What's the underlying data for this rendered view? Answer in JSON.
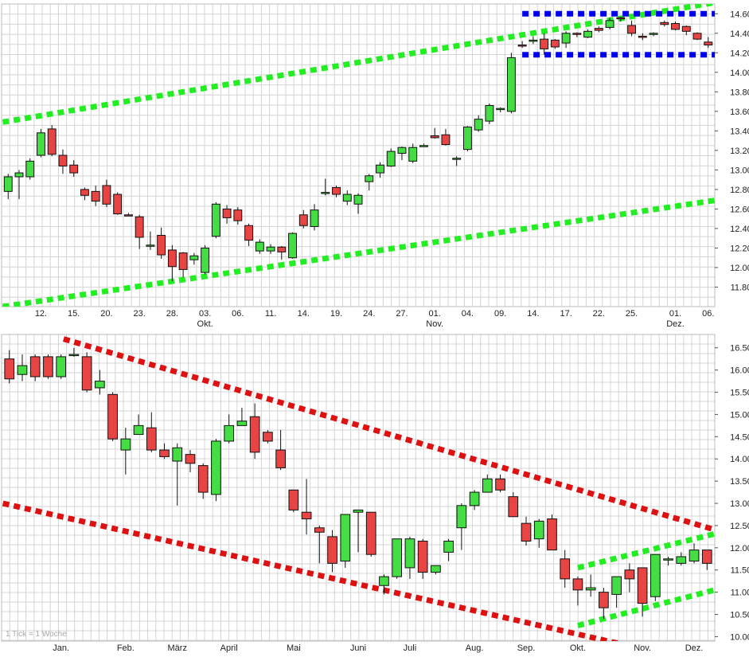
{
  "colors": {
    "up": "#44dd44",
    "down": "#e84444",
    "grid": "#d4d4d4",
    "green_channel": "#22ee22",
    "red_channel": "#dd1111",
    "blue_range": "#0000ee"
  },
  "chart_data": [
    {
      "type": "candlestick",
      "timeframe": "daily",
      "ylim": [
        11600,
        14700
      ],
      "y_ticks": [
        "11.800",
        "12.000",
        "12.200",
        "12.400",
        "12.600",
        "12.800",
        "13.000",
        "13.200",
        "13.400",
        "13.600",
        "13.800",
        "14.000",
        "14.200",
        "14.400",
        "14.600"
      ],
      "x_ticks": [
        {
          "i": 3,
          "label": "12."
        },
        {
          "i": 6,
          "label": "15."
        },
        {
          "i": 9,
          "label": "20."
        },
        {
          "i": 12,
          "label": "23."
        },
        {
          "i": 15,
          "label": "28."
        },
        {
          "i": 18,
          "label": "03.",
          "sub": "Okt."
        },
        {
          "i": 21,
          "label": "06."
        },
        {
          "i": 24,
          "label": "11."
        },
        {
          "i": 27,
          "label": "14."
        },
        {
          "i": 30,
          "label": "19."
        },
        {
          "i": 33,
          "label": "24."
        },
        {
          "i": 36,
          "label": "27."
        },
        {
          "i": 39,
          "label": "01.",
          "sub": "Nov."
        },
        {
          "i": 42,
          "label": "04."
        },
        {
          "i": 45,
          "label": "09."
        },
        {
          "i": 48,
          "label": "14."
        },
        {
          "i": 51,
          "label": "17."
        },
        {
          "i": 54,
          "label": "22."
        },
        {
          "i": 57,
          "label": "25."
        },
        {
          "i": 61,
          "label": "01.",
          "sub": "Dez."
        },
        {
          "i": 64,
          "label": "06."
        }
      ],
      "candles": [
        [
          12780,
          12930,
          12700,
          12960
        ],
        [
          12930,
          12970,
          12700,
          13000
        ],
        [
          12930,
          13090,
          12900,
          13120
        ],
        [
          13150,
          13380,
          13130,
          13420
        ],
        [
          13420,
          13160,
          13140,
          13460
        ],
        [
          13150,
          13040,
          12960,
          13210
        ],
        [
          13050,
          12970,
          12930,
          13100
        ],
        [
          12800,
          12740,
          12690,
          12820
        ],
        [
          12780,
          12680,
          12630,
          12840
        ],
        [
          12840,
          12650,
          12620,
          12900
        ],
        [
          12750,
          12550,
          12540,
          12770
        ],
        [
          12540,
          12530,
          12530,
          12560
        ],
        [
          12520,
          12310,
          12190,
          12540
        ],
        [
          12230,
          12230,
          12180,
          12370
        ],
        [
          12330,
          12130,
          12090,
          12410
        ],
        [
          12180,
          12010,
          11860,
          12230
        ],
        [
          12150,
          11980,
          11900,
          12160
        ],
        [
          12080,
          12120,
          12030,
          12150
        ],
        [
          11950,
          12200,
          11930,
          12230
        ],
        [
          12320,
          12650,
          12300,
          12670
        ],
        [
          12600,
          12510,
          12450,
          12640
        ],
        [
          12590,
          12480,
          12440,
          12620
        ],
        [
          12430,
          12280,
          12220,
          12450
        ],
        [
          12170,
          12260,
          12140,
          12290
        ],
        [
          12170,
          12210,
          12140,
          12240
        ],
        [
          12210,
          12160,
          12080,
          12220
        ],
        [
          12100,
          12350,
          12090,
          12360
        ],
        [
          12540,
          12430,
          12400,
          12590
        ],
        [
          12420,
          12590,
          12380,
          12650
        ],
        [
          12760,
          12770,
          12740,
          12910
        ],
        [
          12820,
          12750,
          12720,
          12840
        ],
        [
          12680,
          12750,
          12640,
          12790
        ],
        [
          12650,
          12740,
          12550,
          12760
        ],
        [
          12880,
          12940,
          12790,
          12960
        ],
        [
          12970,
          13050,
          12920,
          13080
        ],
        [
          13040,
          13190,
          13030,
          13220
        ],
        [
          13170,
          13230,
          13100,
          13240
        ],
        [
          13090,
          13230,
          13070,
          13270
        ],
        [
          13250,
          13250,
          13250,
          13270
        ],
        [
          13350,
          13330,
          13320,
          13430
        ],
        [
          13360,
          13260,
          13250,
          13420
        ],
        [
          13120,
          13120,
          13040,
          13140
        ],
        [
          13210,
          13440,
          13190,
          13450
        ],
        [
          13410,
          13520,
          13390,
          13560
        ],
        [
          13500,
          13660,
          13470,
          13680
        ],
        [
          13620,
          13630,
          13590,
          13640
        ],
        [
          13600,
          14150,
          13580,
          14200
        ],
        [
          14280,
          14270,
          14250,
          14320
        ],
        [
          14320,
          14330,
          14290,
          14370
        ],
        [
          14340,
          14240,
          14180,
          14400
        ],
        [
          14330,
          14260,
          14240,
          14340
        ],
        [
          14300,
          14400,
          14250,
          14420
        ],
        [
          14400,
          14390,
          14360,
          14410
        ],
        [
          14360,
          14420,
          14350,
          14440
        ],
        [
          14450,
          14430,
          14410,
          14470
        ],
        [
          14460,
          14530,
          14440,
          14560
        ],
        [
          14560,
          14550,
          14520,
          14570
        ],
        [
          14480,
          14400,
          14370,
          14530
        ],
        [
          14370,
          14360,
          14330,
          14400
        ],
        [
          14400,
          14400,
          14370,
          14410
        ],
        [
          14510,
          14490,
          14470,
          14530
        ],
        [
          14500,
          14440,
          14430,
          14520
        ],
        [
          14470,
          14420,
          14380,
          14480
        ],
        [
          14400,
          14340,
          14330,
          14410
        ],
        [
          14310,
          14280,
          14250,
          14360
        ]
      ],
      "trend_lines": [
        {
          "color": "green",
          "points": [
            [
              -0.5,
              13490
            ],
            [
              66.5,
              14750
            ]
          ]
        },
        {
          "color": "green",
          "points": [
            [
              -0.5,
              11600
            ],
            [
              66.5,
              12720
            ]
          ]
        },
        {
          "color": "blue",
          "points": [
            [
              47,
              14600
            ],
            [
              66.5,
              14600
            ]
          ]
        },
        {
          "color": "blue",
          "points": [
            [
              47,
              14180
            ],
            [
              66.5,
              14180
            ]
          ]
        }
      ]
    },
    {
      "type": "candlestick",
      "timeframe": "weekly",
      "ylim": [
        9900,
        16800
      ],
      "y_ticks": [
        "10.000",
        "10.500",
        "11.000",
        "11.500",
        "12.000",
        "12.500",
        "13.000",
        "13.500",
        "14.000",
        "14.500",
        "15.000",
        "15.500",
        "16.000",
        "16.500"
      ],
      "x_ticks": [
        {
          "i": 4,
          "label": "Jan."
        },
        {
          "i": 9,
          "label": "Feb."
        },
        {
          "i": 13,
          "label": "März"
        },
        {
          "i": 17,
          "label": "April"
        },
        {
          "i": 22,
          "label": "Mai"
        },
        {
          "i": 27,
          "label": "Juni"
        },
        {
          "i": 31,
          "label": "Juli"
        },
        {
          "i": 36,
          "label": "Aug."
        },
        {
          "i": 40,
          "label": "Sep."
        },
        {
          "i": 44,
          "label": "Okt."
        },
        {
          "i": 49,
          "label": "Nov."
        },
        {
          "i": 53,
          "label": "Dez."
        }
      ],
      "candles": [
        [
          16250,
          15800,
          15700,
          16450
        ],
        [
          15900,
          16100,
          15750,
          16350
        ],
        [
          16300,
          15850,
          15750,
          16350
        ],
        [
          16300,
          15850,
          15800,
          16350
        ],
        [
          15850,
          16300,
          15800,
          16350
        ],
        [
          16350,
          16350,
          16300,
          16500
        ],
        [
          16300,
          15550,
          15500,
          16400
        ],
        [
          15600,
          15750,
          15450,
          16000
        ],
        [
          15450,
          14450,
          14400,
          15500
        ],
        [
          14200,
          14450,
          13650,
          14700
        ],
        [
          14550,
          14750,
          14550,
          15000
        ],
        [
          14700,
          14200,
          14150,
          15050
        ],
        [
          14200,
          14050,
          14000,
          14350
        ],
        [
          13950,
          14250,
          12950,
          14350
        ],
        [
          14100,
          13900,
          13700,
          14200
        ],
        [
          13850,
          13250,
          13100,
          13900
        ],
        [
          13200,
          14400,
          13050,
          14450
        ],
        [
          14400,
          14750,
          14350,
          15000
        ],
        [
          14750,
          14850,
          14750,
          15150
        ],
        [
          14950,
          14150,
          14000,
          15250
        ],
        [
          14600,
          14400,
          14350,
          14650
        ],
        [
          14200,
          13800,
          13750,
          14650
        ],
        [
          13300,
          12850,
          12800,
          13300
        ],
        [
          12800,
          12650,
          12300,
          13550
        ],
        [
          12450,
          12350,
          11650,
          12500
        ],
        [
          12250,
          11650,
          11450,
          12400
        ],
        [
          11700,
          12750,
          11550,
          12750
        ],
        [
          12800,
          12850,
          11900,
          12850
        ],
        [
          12800,
          11850,
          11800,
          12800
        ],
        [
          11150,
          11350,
          10950,
          11400
        ],
        [
          11350,
          12200,
          11300,
          12200
        ],
        [
          11550,
          12200,
          11300,
          12250
        ],
        [
          12150,
          11450,
          11300,
          12200
        ],
        [
          11450,
          11600,
          11400,
          11600
        ],
        [
          11900,
          12150,
          11700,
          12200
        ],
        [
          12450,
          12950,
          11950,
          13000
        ],
        [
          12950,
          13250,
          12850,
          13300
        ],
        [
          13250,
          13550,
          13250,
          13650
        ],
        [
          13550,
          13300,
          13250,
          13650
        ],
        [
          13150,
          12700,
          12700,
          13250
        ],
        [
          12550,
          12150,
          12050,
          12700
        ],
        [
          12200,
          12600,
          12000,
          12650
        ],
        [
          12650,
          11950,
          11950,
          12750
        ],
        [
          11750,
          11300,
          11100,
          11950
        ],
        [
          11300,
          11050,
          10700,
          11350
        ],
        [
          11050,
          11100,
          10900,
          11400
        ],
        [
          11000,
          10650,
          10400,
          11100
        ],
        [
          10950,
          11350,
          10650,
          11350
        ],
        [
          11500,
          11300,
          11000,
          11650
        ],
        [
          11550,
          10750,
          10450,
          11550
        ],
        [
          10900,
          11850,
          10800,
          11850
        ],
        [
          11750,
          11750,
          11600,
          11800
        ],
        [
          11650,
          11800,
          11600,
          11900
        ],
        [
          11700,
          11950,
          11650,
          12100
        ],
        [
          11950,
          11650,
          11500,
          11950
        ]
      ],
      "trend_lines": [
        {
          "color": "red",
          "points": [
            [
              4.2,
              16700
            ],
            [
              55.5,
              12330
            ]
          ]
        },
        {
          "color": "red",
          "points": [
            [
              -0.5,
              13000
            ],
            [
              47.4,
              9830
            ]
          ]
        },
        {
          "color": "green",
          "points": [
            [
              44,
              11550
            ],
            [
              55.5,
              12380
            ]
          ]
        },
        {
          "color": "green",
          "points": [
            [
              44,
              10250
            ],
            [
              55.5,
              11120
            ]
          ]
        }
      ],
      "note": "1 Tick = 1 Woche"
    }
  ]
}
